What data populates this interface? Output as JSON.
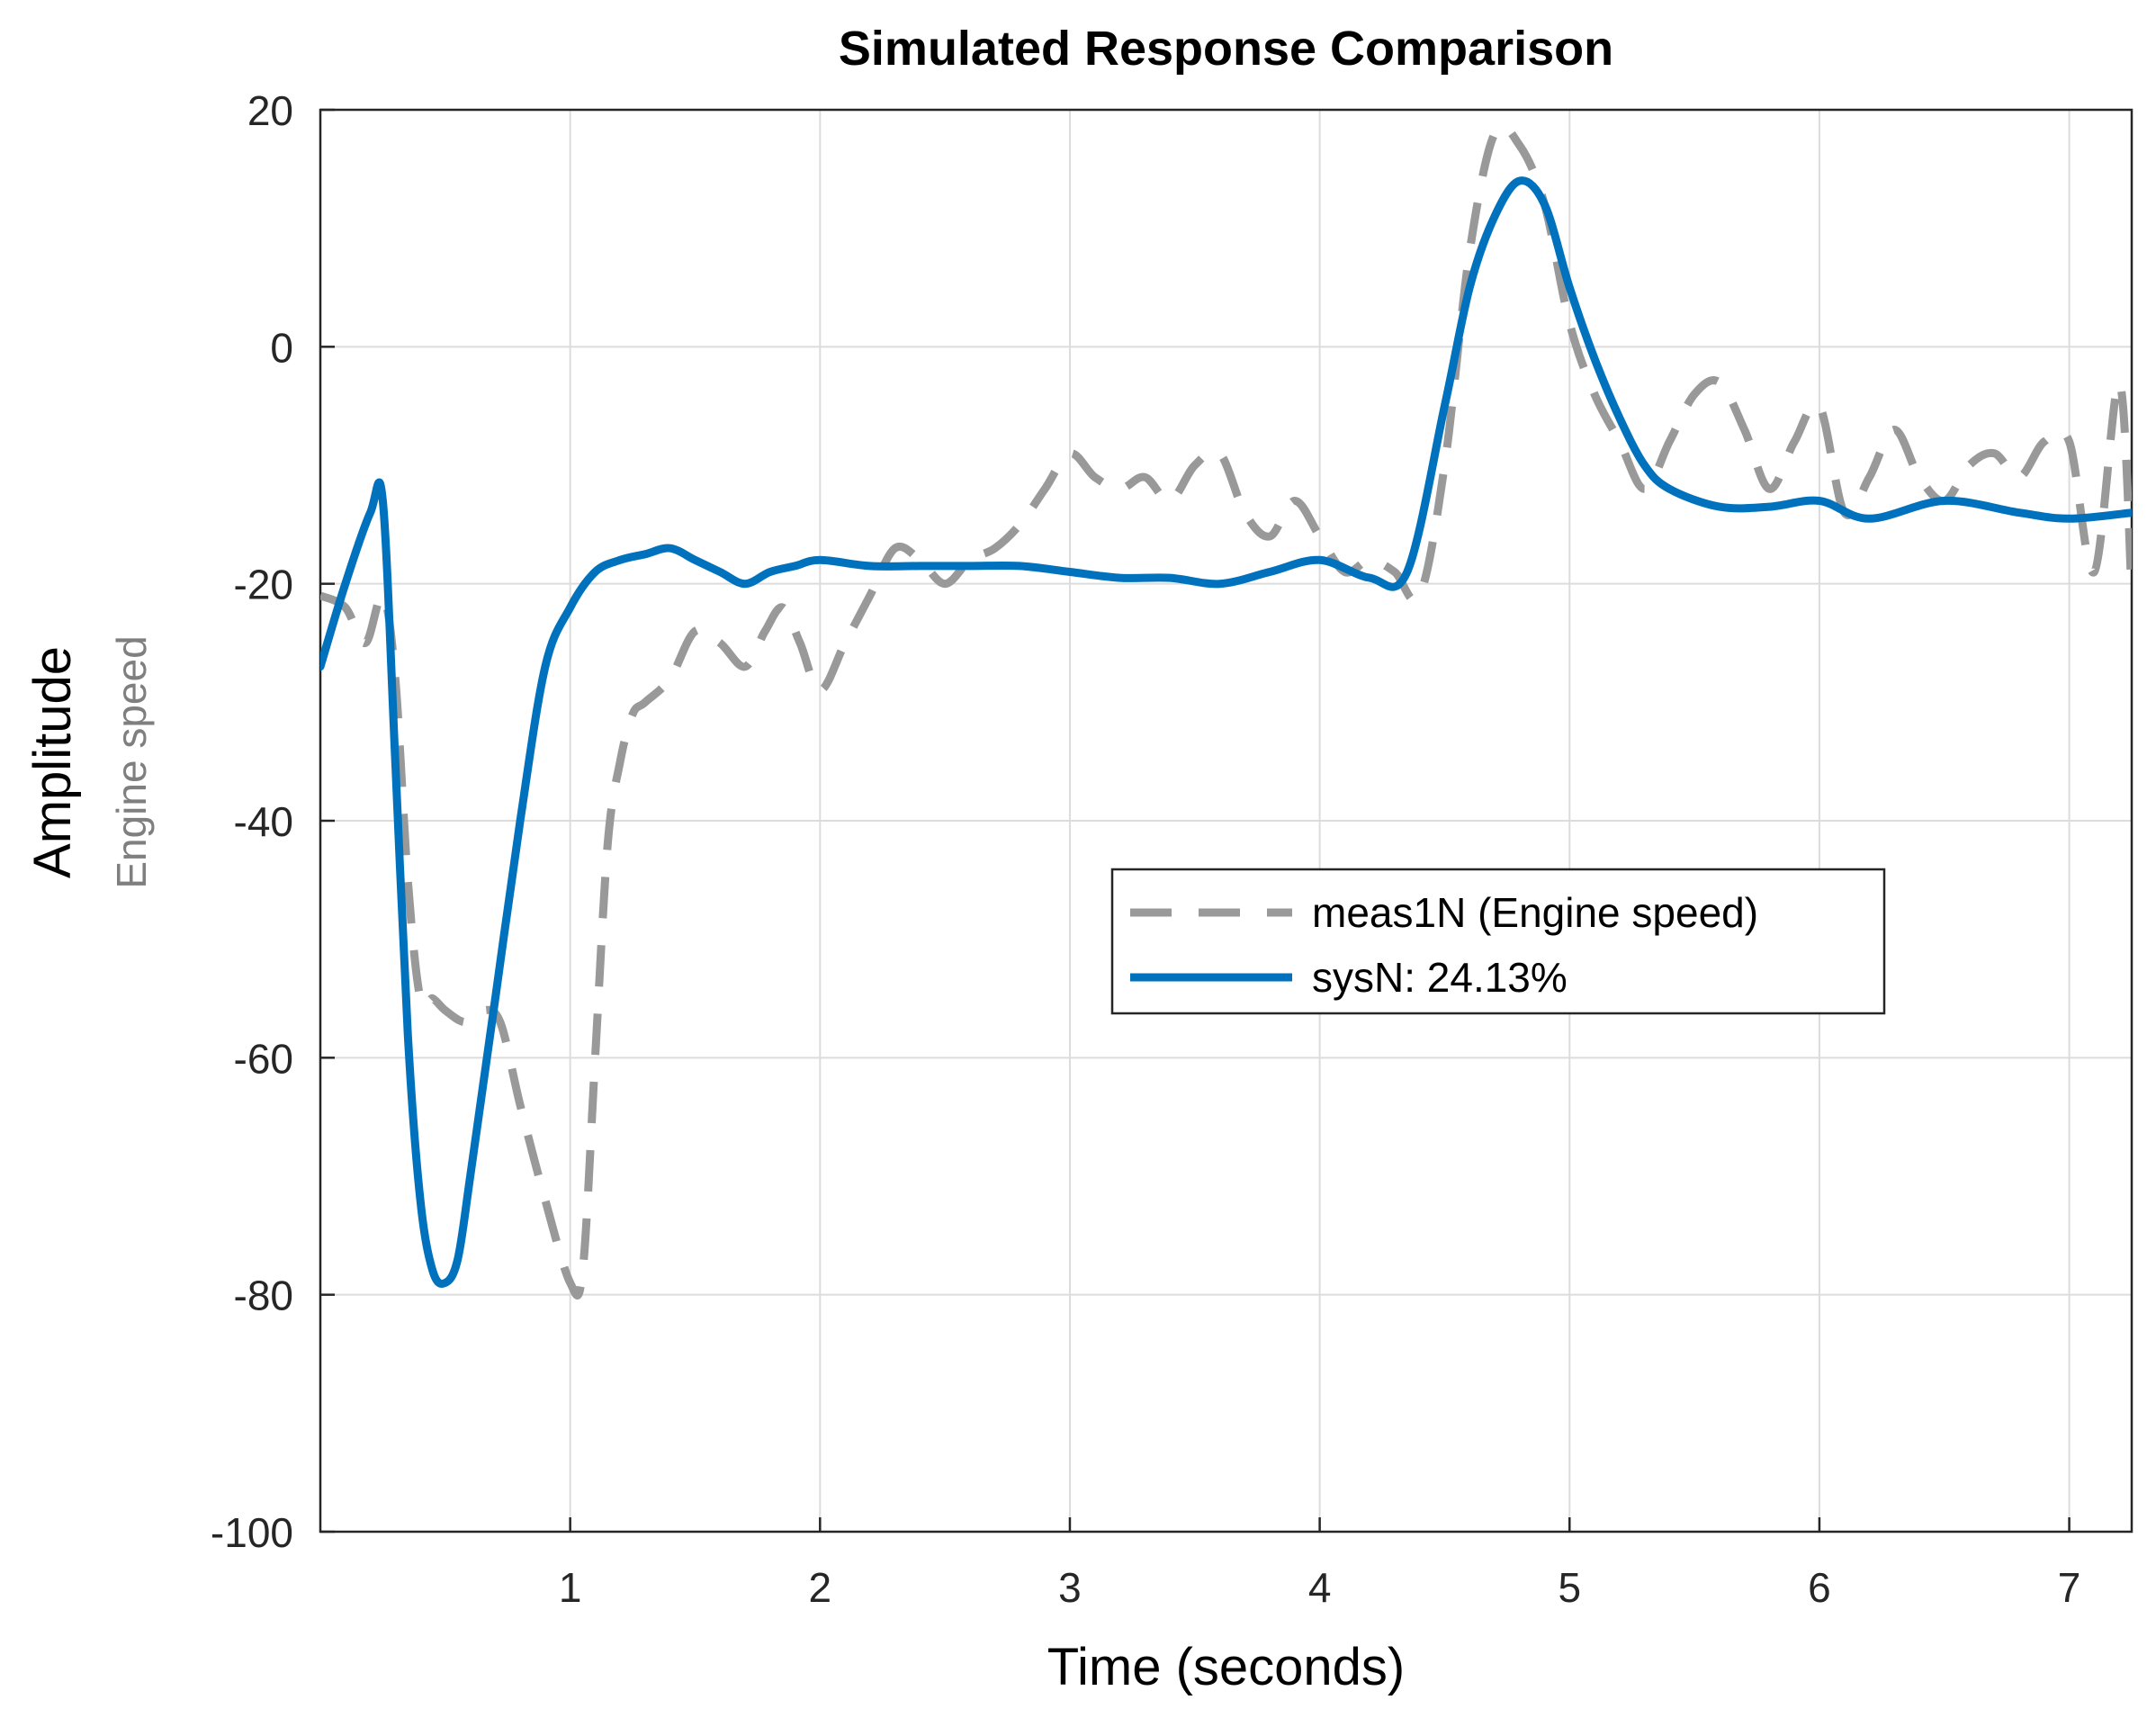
{
  "chart_data": {
    "type": "line",
    "title": "Simulated Response Comparison",
    "xlabel": "Time (seconds)",
    "ylabel": "Amplitude",
    "ylabel_sub": "Engine speed",
    "xlim": [
      0,
      7.25
    ],
    "ylim": [
      -100,
      20
    ],
    "xticks": [
      1,
      2,
      3,
      4,
      5,
      6,
      7
    ],
    "yticks": [
      -100,
      -80,
      -60,
      -40,
      -20,
      0,
      20
    ],
    "grid": true,
    "legend": "center-right",
    "series": [
      {
        "name": "meas1N (Engine speed)",
        "style": "dashed",
        "color": "#999999",
        "x": [
          0,
          0.1,
          0.18,
          0.25,
          0.3,
          0.35,
          0.4,
          0.45,
          0.5,
          0.58,
          0.65,
          0.72,
          0.8,
          0.9,
          1.0,
          1.05,
          1.1,
          1.15,
          1.2,
          1.25,
          1.3,
          1.4,
          1.5,
          1.6,
          1.7,
          1.78,
          1.85,
          1.92,
          2.0,
          2.1,
          2.2,
          2.3,
          2.4,
          2.5,
          2.6,
          2.7,
          2.8,
          2.9,
          3.0,
          3.1,
          3.2,
          3.3,
          3.4,
          3.5,
          3.6,
          3.7,
          3.8,
          3.9,
          4.0,
          4.1,
          4.2,
          4.3,
          4.4,
          4.5,
          4.6,
          4.7,
          4.8,
          4.9,
          5.0,
          5.1,
          5.2,
          5.3,
          5.4,
          5.5,
          5.6,
          5.7,
          5.8,
          5.9,
          6.0,
          6.1,
          6.2,
          6.3,
          6.4,
          6.5,
          6.6,
          6.7,
          6.8,
          6.9,
          7.0,
          7.1,
          7.2,
          7.25
        ],
        "values": [
          -21,
          -22,
          -25,
          -21,
          -28,
          -45,
          -55,
          -55,
          -56,
          -57,
          -56,
          -57,
          -64,
          -72,
          -79,
          -78,
          -60,
          -42,
          -35,
          -31,
          -30,
          -28,
          -24,
          -25,
          -27,
          -24,
          -22,
          -25,
          -29,
          -25,
          -21,
          -17,
          -18,
          -20,
          -18,
          -17,
          -15,
          -12,
          -9,
          -11,
          -12,
          -11,
          -13,
          -10,
          -9,
          -14,
          -16,
          -13,
          -16,
          -19,
          -18,
          -19,
          -21,
          -10,
          8,
          18,
          17,
          12,
          2,
          -4,
          -8,
          -12,
          -8,
          -4,
          -3,
          -7,
          -12,
          -8,
          -5,
          -14,
          -11,
          -7,
          -11,
          -13,
          -10,
          -9,
          -11,
          -8,
          -8,
          -19,
          -3,
          -21
        ]
      },
      {
        "name": "sysN: 24.13%",
        "style": "solid",
        "color": "#0072bd",
        "x": [
          0,
          0.1,
          0.2,
          0.25,
          0.3,
          0.35,
          0.4,
          0.45,
          0.5,
          0.55,
          0.6,
          0.7,
          0.8,
          0.9,
          1.0,
          1.1,
          1.2,
          1.3,
          1.4,
          1.5,
          1.6,
          1.7,
          1.8,
          1.9,
          2.0,
          2.2,
          2.4,
          2.6,
          2.8,
          3.0,
          3.2,
          3.4,
          3.6,
          3.8,
          4.0,
          4.2,
          4.35,
          4.5,
          4.6,
          4.7,
          4.8,
          4.9,
          5.0,
          5.1,
          5.2,
          5.3,
          5.4,
          5.6,
          5.8,
          6.0,
          6.2,
          6.5,
          6.8,
          7.0,
          7.25
        ],
        "values": [
          -27,
          -20,
          -14,
          -13,
          -35,
          -58,
          -72,
          -78,
          -79,
          -77,
          -70,
          -55,
          -40,
          -27,
          -22,
          -19,
          -18,
          -17.5,
          -17,
          -18,
          -19,
          -20,
          -19,
          -18.5,
          -18,
          -18.5,
          -18.5,
          -18.5,
          -18.5,
          -19,
          -19.5,
          -19.5,
          -20,
          -19,
          -18,
          -19.5,
          -19,
          -5,
          5,
          11,
          14,
          12,
          5,
          -1,
          -6,
          -10,
          -12,
          -13.5,
          -13.5,
          -13,
          -14.5,
          -13,
          -14,
          -14.5,
          -14
        ]
      }
    ]
  }
}
